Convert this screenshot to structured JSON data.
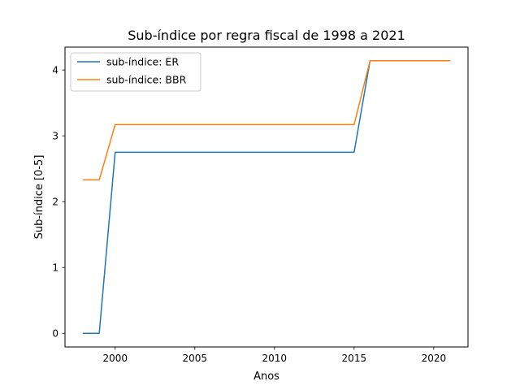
{
  "chart_data": {
    "type": "line",
    "title": "Sub-índice por regra fiscal de 1998 a 2021",
    "xlabel": "Anos",
    "ylabel": "Sub-índice [0-5]",
    "xlim": [
      1996.85,
      2022.15
    ],
    "ylim": [
      -0.207,
      4.347
    ],
    "xticks": [
      2000,
      2005,
      2010,
      2015,
      2020
    ],
    "yticks": [
      0,
      1,
      2,
      3,
      4
    ],
    "grid": false,
    "legend_position": "upper left",
    "x": [
      1998,
      1999,
      2000,
      2001,
      2002,
      2003,
      2004,
      2005,
      2006,
      2007,
      2008,
      2009,
      2010,
      2011,
      2012,
      2013,
      2014,
      2015,
      2016,
      2017,
      2018,
      2019,
      2020,
      2021
    ],
    "series": [
      {
        "name": "sub-índice: ER",
        "color": "#1f77b4",
        "values": [
          0,
          0,
          2.75,
          2.75,
          2.75,
          2.75,
          2.75,
          2.75,
          2.75,
          2.75,
          2.75,
          2.75,
          2.75,
          2.75,
          2.75,
          2.75,
          2.75,
          2.75,
          4.14,
          4.14,
          4.14,
          4.14,
          4.14,
          4.14
        ]
      },
      {
        "name": "sub-índice: BBR",
        "color": "#ff7f0e",
        "values": [
          2.33,
          2.33,
          3.17,
          3.17,
          3.17,
          3.17,
          3.17,
          3.17,
          3.17,
          3.17,
          3.17,
          3.17,
          3.17,
          3.17,
          3.17,
          3.17,
          3.17,
          3.17,
          4.14,
          4.14,
          4.14,
          4.14,
          4.14,
          4.14
        ]
      }
    ]
  }
}
